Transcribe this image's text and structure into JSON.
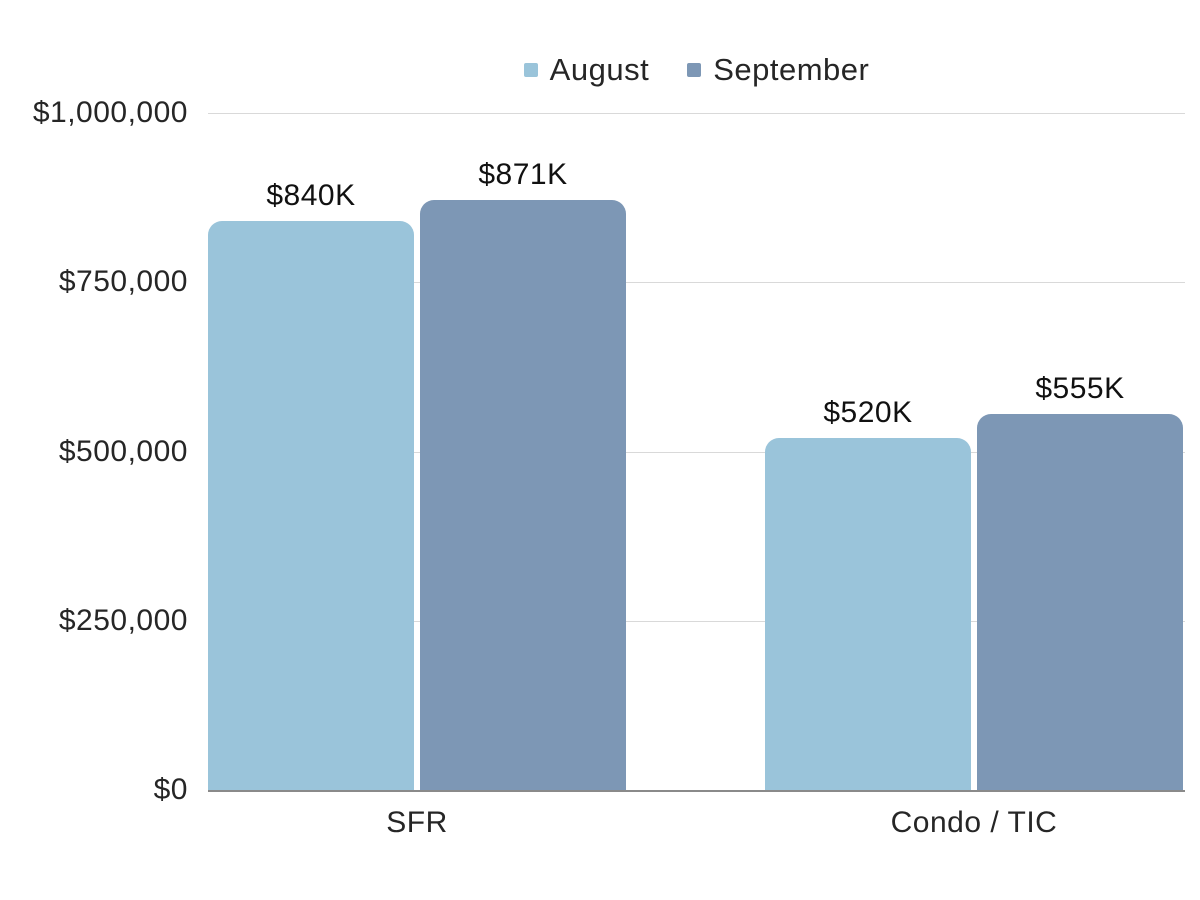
{
  "chart_data": {
    "type": "bar",
    "title": "",
    "categories": [
      "SFR",
      "Condo / TIC"
    ],
    "series": [
      {
        "name": "August",
        "color": "#9ac4da",
        "values": [
          840000,
          520000
        ],
        "value_labels": [
          "$840K",
          "$520K"
        ]
      },
      {
        "name": "September",
        "color": "#7d97b5",
        "values": [
          871000,
          555000
        ],
        "value_labels": [
          "$871K",
          "$555K"
        ]
      }
    ],
    "y_axis": {
      "min": 0,
      "max": 1000000,
      "tick_interval": 250000,
      "tick_labels": [
        "$0",
        "$250,000",
        "$500,000",
        "$750,000",
        "$1,000,000"
      ]
    },
    "legend": {
      "position": "top",
      "items": [
        "August",
        "September"
      ]
    },
    "grid": true,
    "colors": {
      "gridline": "#d9d9d9",
      "baseline": "#8a8a8a",
      "text": "#262626",
      "background": "#ffffff"
    }
  }
}
